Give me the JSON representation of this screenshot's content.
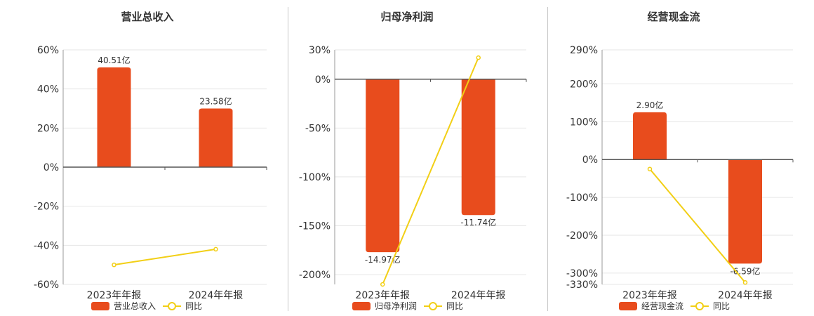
{
  "colors": {
    "bar": "#e84c1d",
    "line": "#f2cf16",
    "axis": "#555555",
    "grid": "#e6e6e6"
  },
  "chart_data": [
    {
      "type": "bar",
      "title": "营业总收入",
      "categories": [
        "2023年年报",
        "2024年年报"
      ],
      "ylim": [
        -60,
        60
      ],
      "yticks": [
        -60,
        -40,
        -20,
        0,
        20,
        40,
        60
      ],
      "ytick_labels": [
        "-60%",
        "-40%",
        "-20%",
        "0%",
        "20%",
        "40%",
        "60%"
      ],
      "series": [
        {
          "name": "营业总收入",
          "kind": "bar",
          "values": [
            51,
            30
          ],
          "labels": [
            "40.51亿",
            "23.58亿"
          ]
        },
        {
          "name": "同比",
          "kind": "line",
          "values": [
            -50,
            -42
          ]
        }
      ],
      "legend": "bottom",
      "grid": true
    },
    {
      "type": "bar",
      "title": "归母净利润",
      "categories": [
        "2023年年报",
        "2024年年报"
      ],
      "ylim": [
        -210,
        30
      ],
      "yticks": [
        -200,
        -150,
        -100,
        -50,
        0,
        30
      ],
      "ytick_labels": [
        "-200%",
        "-150%",
        "-100%",
        "-50%",
        "0%",
        "30%"
      ],
      "series": [
        {
          "name": "归母净利润",
          "kind": "bar",
          "values": [
            -177,
            -139
          ],
          "labels": [
            "-14.97亿",
            "-11.74亿"
          ]
        },
        {
          "name": "同比",
          "kind": "line",
          "values": [
            -210,
            22
          ]
        }
      ],
      "legend": "bottom",
      "grid": true
    },
    {
      "type": "bar",
      "title": "经营现金流",
      "categories": [
        "2023年年报",
        "2024年年报"
      ],
      "ylim": [
        -330,
        290
      ],
      "yticks": [
        -330,
        -300,
        -200,
        -100,
        0,
        100,
        200,
        290
      ],
      "ytick_labels": [
        "-330%",
        "-300%",
        "-200%",
        "-100%",
        "0%",
        "100%",
        "200%",
        "290%"
      ],
      "series": [
        {
          "name": "经营现金流",
          "kind": "bar",
          "values": [
            125,
            -275
          ],
          "labels": [
            "2.90亿",
            "-6.59亿"
          ]
        },
        {
          "name": "同比",
          "kind": "line",
          "values": [
            -25,
            -325
          ]
        }
      ],
      "legend": "bottom",
      "grid": true
    }
  ]
}
